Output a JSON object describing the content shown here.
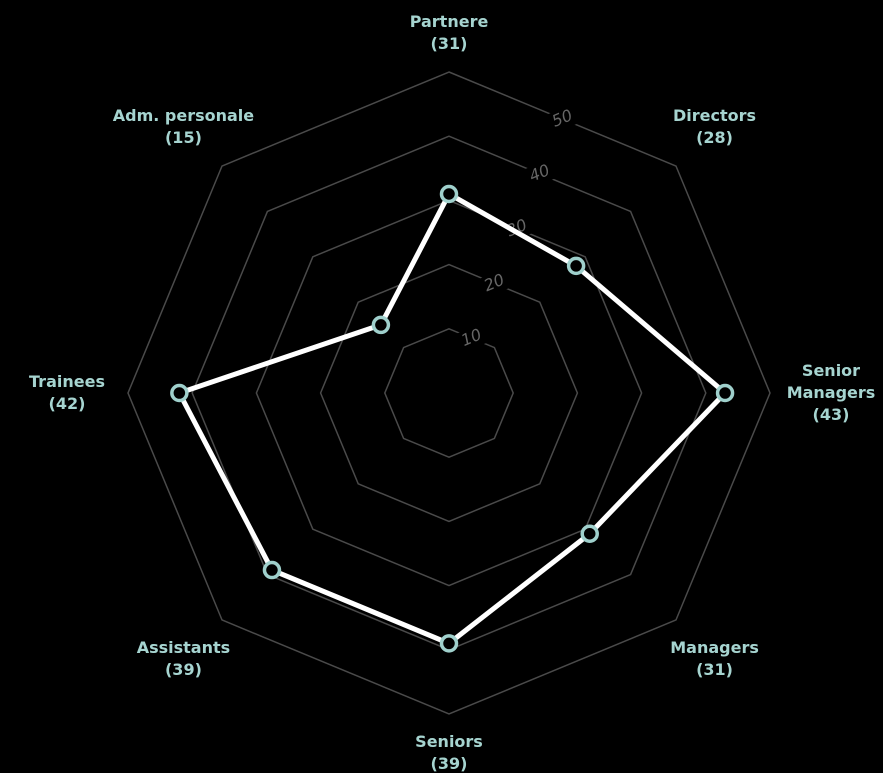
{
  "chart_data": {
    "type": "radar",
    "categories": [
      "Partnere",
      "Directors",
      "Senior Managers",
      "Managers",
      "Seniors",
      "Assistants",
      "Trainees",
      "Adm. personale"
    ],
    "values": [
      31,
      28,
      43,
      31,
      39,
      39,
      42,
      15
    ],
    "value_labels": [
      "(31)",
      "(28)",
      "(43)",
      "(31)",
      "(39)",
      "(39)",
      "(42)",
      "(15)"
    ],
    "ylim": [
      0,
      50
    ],
    "yticks": [
      10,
      20,
      30,
      40,
      50
    ],
    "color": "#ffffff",
    "marker_color": "#9fd0cc",
    "grid": true
  }
}
